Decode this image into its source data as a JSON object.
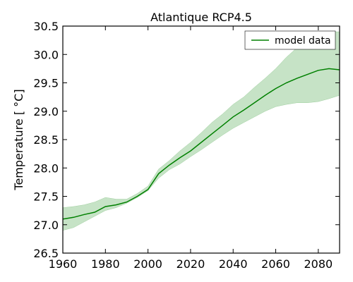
{
  "chart_data": {
    "type": "line",
    "title": "Atlantique RCP4.5",
    "xlabel": "",
    "ylabel": "Temperature [ °C]",
    "xlim": [
      1960,
      2090
    ],
    "ylim": [
      26.5,
      30.5
    ],
    "xticks": [
      1960,
      1980,
      2000,
      2020,
      2040,
      2060,
      2080
    ],
    "yticks": [
      26.5,
      27.0,
      27.5,
      28.0,
      28.5,
      29.0,
      29.5,
      30.0,
      30.5
    ],
    "xtick_labels": [
      "1960",
      "1980",
      "2000",
      "2020",
      "2040",
      "2060",
      "2080"
    ],
    "ytick_labels": [
      "26.5",
      "27.0",
      "27.5",
      "28.0",
      "28.5",
      "29.0",
      "29.5",
      "30.0",
      "30.5"
    ],
    "grid": false,
    "legend": {
      "position": "top-right",
      "entries": [
        "model data"
      ]
    },
    "series": [
      {
        "name": "model data",
        "color": "#008000",
        "band_color": "#c6e3c6",
        "x": [
          1960,
          1965,
          1970,
          1975,
          1980,
          1985,
          1990,
          1995,
          2000,
          2005,
          2010,
          2015,
          2020,
          2025,
          2030,
          2035,
          2040,
          2045,
          2050,
          2055,
          2060,
          2065,
          2070,
          2075,
          2080,
          2085,
          2090
        ],
        "values": [
          27.1,
          27.13,
          27.18,
          27.22,
          27.32,
          27.35,
          27.4,
          27.5,
          27.62,
          27.9,
          28.05,
          28.18,
          28.3,
          28.45,
          28.6,
          28.75,
          28.9,
          29.02,
          29.15,
          29.28,
          29.4,
          29.5,
          29.58,
          29.65,
          29.72,
          29.75,
          29.73
        ],
        "lower": [
          26.9,
          26.95,
          27.05,
          27.15,
          27.25,
          27.3,
          27.38,
          27.48,
          27.6,
          27.82,
          27.97,
          28.07,
          28.2,
          28.32,
          28.45,
          28.58,
          28.7,
          28.8,
          28.9,
          29.0,
          29.08,
          29.12,
          29.15,
          29.15,
          29.17,
          29.22,
          29.28
        ],
        "upper": [
          27.3,
          27.32,
          27.35,
          27.4,
          27.48,
          27.45,
          27.45,
          27.55,
          27.68,
          27.98,
          28.13,
          28.3,
          28.45,
          28.62,
          28.8,
          28.95,
          29.12,
          29.25,
          29.42,
          29.58,
          29.75,
          29.95,
          30.12,
          30.25,
          30.38,
          30.4,
          30.4
        ]
      }
    ]
  }
}
